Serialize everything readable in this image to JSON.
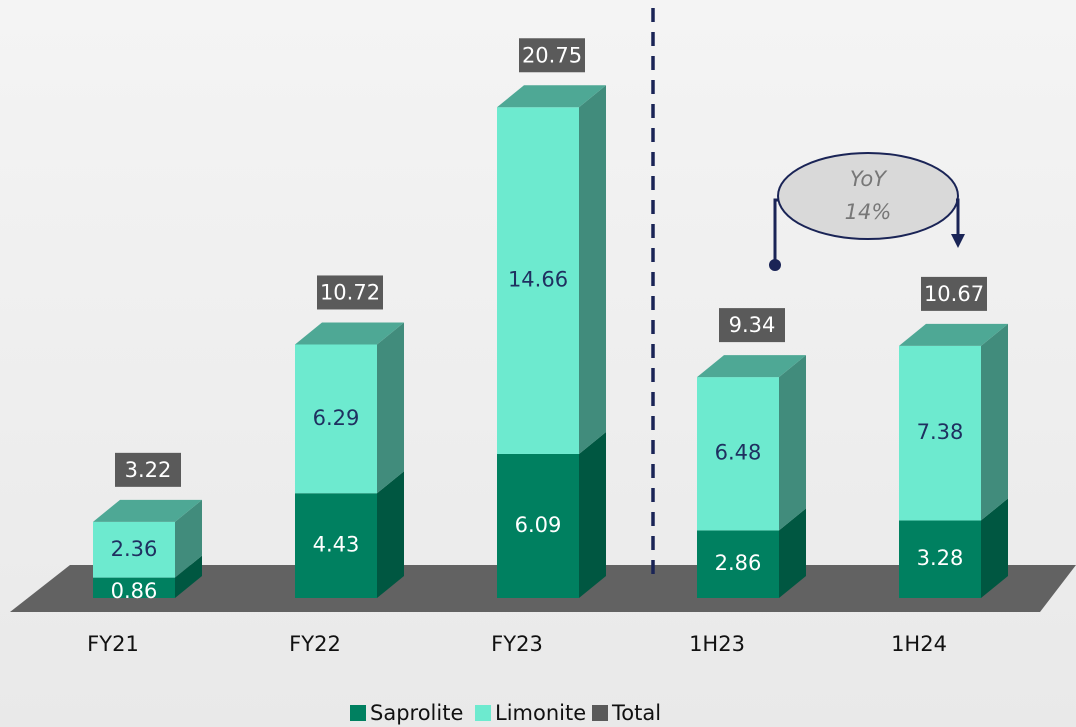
{
  "chart_data": {
    "type": "bar3d_stacked",
    "categories": [
      "FY21",
      "FY22",
      "FY23",
      "1H23",
      "1H24"
    ],
    "series": [
      {
        "name": "Saprolite",
        "color": "#008060",
        "values": [
          0.86,
          4.43,
          6.09,
          2.86,
          3.28
        ]
      },
      {
        "name": "Limonite",
        "color": "#6deacf",
        "values": [
          2.36,
          6.29,
          14.66,
          6.48,
          7.38
        ]
      },
      {
        "name": "Total",
        "color": "#5a5a5a",
        "values": [
          3.22,
          10.72,
          20.75,
          9.34,
          10.67
        ]
      }
    ],
    "annotations": [
      "YoY",
      "14%"
    ]
  }
}
